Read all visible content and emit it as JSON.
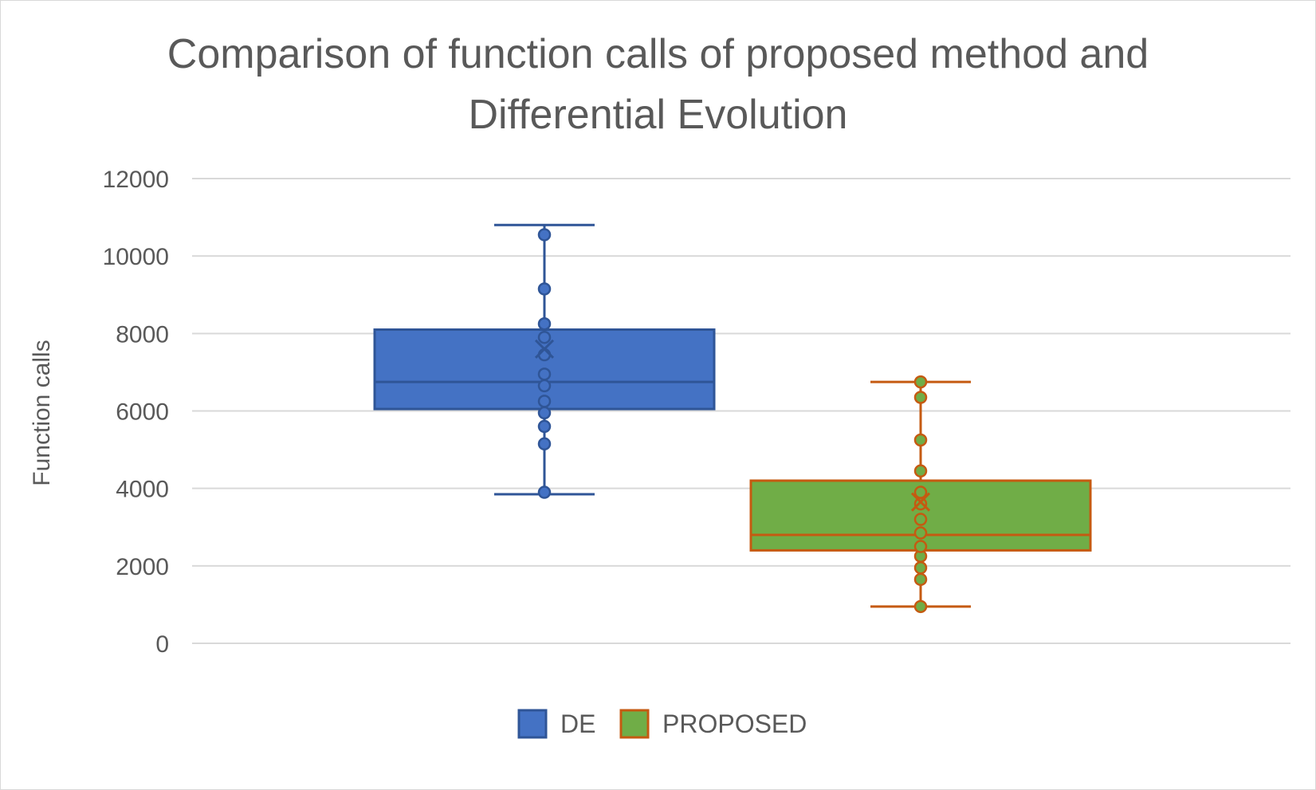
{
  "chart_data": {
    "type": "boxplot",
    "title_lines": [
      "Comparison of function calls  of proposed method and",
      "Differential Evolution"
    ],
    "xlabel": "",
    "ylabel": "Function calls",
    "ylim": [
      0,
      12000
    ],
    "yticks": [
      0,
      2000,
      4000,
      6000,
      8000,
      10000,
      12000
    ],
    "grid": true,
    "legend_position": "bottom",
    "series": [
      {
        "name": "DE",
        "fill_color": "#4472c4",
        "edge_color": "#2f5597",
        "whisker_min": 3850,
        "q1": 6050,
        "median": 6750,
        "q3": 8100,
        "whisker_max": 10800,
        "mean": 7600,
        "points": [
          3900,
          5150,
          5600,
          5950,
          6250,
          6650,
          6950,
          7450,
          7900,
          8250,
          9150,
          10550
        ]
      },
      {
        "name": "PROPOSED",
        "fill_color": "#70ad47",
        "edge_color": "#c55a11",
        "whisker_min": 950,
        "q1": 2400,
        "median": 2800,
        "q3": 4200,
        "whisker_max": 6750,
        "mean": 3650,
        "points": [
          950,
          1650,
          1950,
          2250,
          2500,
          2850,
          3200,
          3600,
          3900,
          4450,
          5250,
          6350,
          6750
        ]
      }
    ]
  }
}
